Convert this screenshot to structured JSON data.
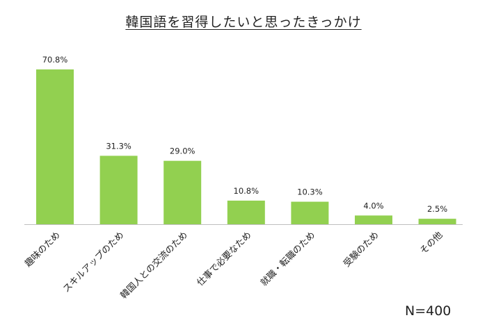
{
  "chart_data": {
    "type": "bar",
    "title": "韓国語を習得したいと思ったきっかけ",
    "categories": [
      "趣味のため",
      "スキルアップのため",
      "韓国人との交流のため",
      "仕事で必要なため",
      "就職・転職のため",
      "受験のため",
      "その他"
    ],
    "values": [
      70.8,
      31.3,
      29.0,
      10.8,
      10.3,
      4.0,
      2.5
    ],
    "value_labels": [
      "70.8%",
      "31.3%",
      "29.0%",
      "10.8%",
      "10.3%",
      "4.0%",
      "2.5%"
    ],
    "xlabel": "",
    "ylabel": "",
    "ylim": [
      0,
      75
    ],
    "grid": false,
    "sample_size": "N=400",
    "colors": {
      "bar": "#92d050",
      "axis": "#bfbfbf"
    }
  }
}
